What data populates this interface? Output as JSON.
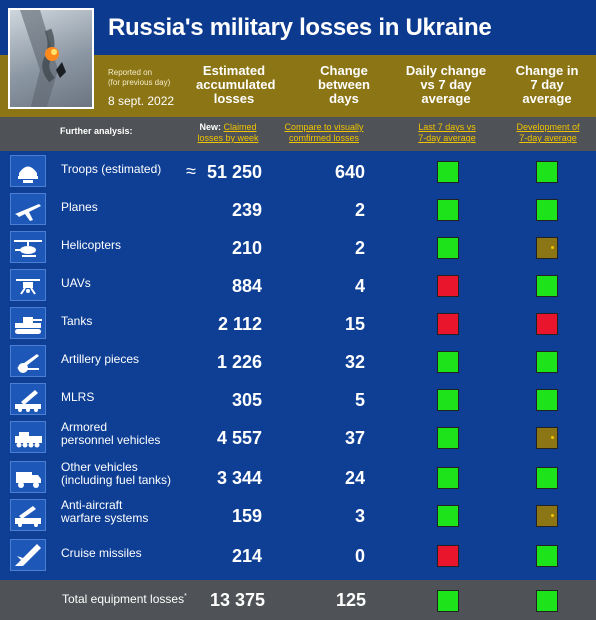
{
  "header": {
    "title": "Russia's military losses in Ukraine",
    "reported_line1": "Reported on",
    "reported_line2": "(for previous day)",
    "date": "8 sept. 2022"
  },
  "columns": {
    "accumulated": [
      "Estimated",
      "accumulated",
      "losses"
    ],
    "change": [
      "Change",
      "between",
      "days"
    ],
    "daily": [
      "Daily change",
      "vs 7 day",
      "average"
    ],
    "avg7": [
      "Change in",
      "7 day",
      "average"
    ]
  },
  "analysis": {
    "label": "Further analysis:",
    "new_prefix": "New:",
    "claimed_1": "Claimed",
    "claimed_2": "losses by week",
    "compare_1": "Compare to visually",
    "compare_2": "comfirmed losses",
    "last7_1": "Last 7 days vs",
    "last7_2": "7-day average",
    "dev_1": "Development of",
    "dev_2": "7-day average"
  },
  "colors": {
    "green": "#1de31b",
    "red": "#e8152c",
    "gold": "#8c7514",
    "blue": "#0e3f95"
  },
  "rows": [
    {
      "icon": "helmet-icon",
      "label1": "Troops (estimated)",
      "label2": "",
      "approx": "≈",
      "value": "51 250",
      "change": "640",
      "daily": "green",
      "avg7": "green"
    },
    {
      "icon": "plane-icon",
      "label1": "Planes",
      "label2": "",
      "approx": "",
      "value": "239",
      "change": "2",
      "daily": "green",
      "avg7": "green"
    },
    {
      "icon": "helicopter-icon",
      "label1": "Helicopters",
      "label2": "",
      "approx": "",
      "value": "210",
      "change": "2",
      "daily": "green",
      "avg7": "gold"
    },
    {
      "icon": "drone-icon",
      "label1": "UAVs",
      "label2": "",
      "approx": "",
      "value": "884",
      "change": "4",
      "daily": "red",
      "avg7": "green"
    },
    {
      "icon": "tank-icon",
      "label1": "Tanks",
      "label2": "",
      "approx": "",
      "value": "2 112",
      "change": "15",
      "daily": "red",
      "avg7": "red"
    },
    {
      "icon": "artillery-icon",
      "label1": "Artillery pieces",
      "label2": "",
      "approx": "",
      "value": "1 226",
      "change": "32",
      "daily": "green",
      "avg7": "green"
    },
    {
      "icon": "mlrs-icon",
      "label1": "MLRS",
      "label2": "",
      "approx": "",
      "value": "305",
      "change": "5",
      "daily": "green",
      "avg7": "green"
    },
    {
      "icon": "apc-icon",
      "label1": "Armored",
      "label2": "personnel vehicles",
      "approx": "",
      "value": "4 557",
      "change": "37",
      "daily": "green",
      "avg7": "gold"
    },
    {
      "icon": "truck-icon",
      "label1": "Other vehicles",
      "label2": "(including fuel tanks)",
      "approx": "",
      "value": "3 344",
      "change": "24",
      "daily": "green",
      "avg7": "green"
    },
    {
      "icon": "anti-aircraft-icon",
      "label1": "Anti-aircraft",
      "label2": "warfare systems",
      "approx": "",
      "value": "159",
      "change": "3",
      "daily": "green",
      "avg7": "gold"
    },
    {
      "icon": "missile-icon",
      "label1": "Cruise missiles",
      "label2": "",
      "approx": "",
      "value": "214",
      "change": "0",
      "daily": "red",
      "avg7": "green"
    }
  ],
  "total": {
    "label": "Total equipment losses",
    "sup": "*",
    "value": "13 375",
    "change": "125",
    "daily": "green",
    "avg7": "green"
  }
}
